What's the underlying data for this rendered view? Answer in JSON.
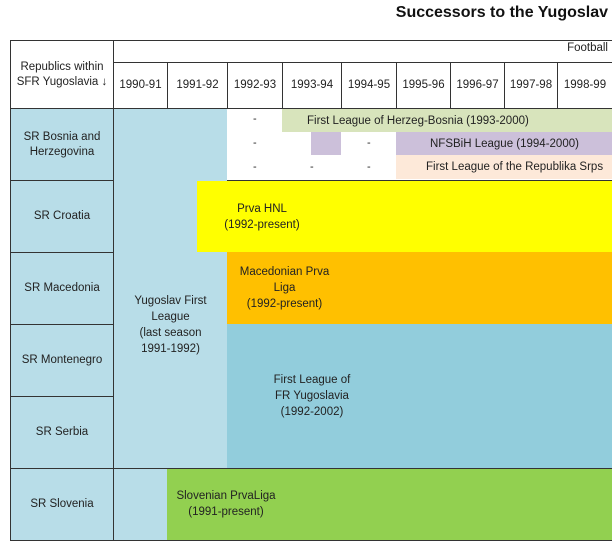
{
  "title": "Successors to the Yugoslav",
  "header": {
    "corner_label_line1": "Republics within",
    "corner_label_line2": "SFR Yugoslavia ↓",
    "sport": "Football",
    "years": [
      "1990-91",
      "1991-92",
      "1992-93",
      "1993-94",
      "1994-95",
      "1995-96",
      "1996-97",
      "1997-98",
      "1998-99"
    ]
  },
  "republics": {
    "bosnia_line1": "SR Bosnia and",
    "bosnia_line2": "Herzegovina",
    "croatia": "SR Croatia",
    "macedonia": "SR Macedonia",
    "montenegro": "SR Montenegro",
    "serbia": "SR Serbia",
    "slovenia": "SR Slovenia"
  },
  "leagues": {
    "yugoslav_first": [
      "Yugoslav First",
      "League",
      "(last season",
      "1991-1992)"
    ],
    "herzeg_bosnia": "First League of Herzeg-Bosnia (1993-2000)",
    "nfsbih": "NFSBiH League (1994-2000)",
    "republika_srpska": "First League of the Republika Srps",
    "prva_hnl": [
      "Prva HNL",
      "(1992-present)"
    ],
    "macedonian": [
      "Macedonian Prva",
      "Liga",
      "(1992-present)"
    ],
    "fr_yugoslavia": [
      "First League of",
      "FR Yugoslavia",
      "(1992-2002)"
    ],
    "slovenian": [
      "Slovenian PrvaLiga",
      "(1991-present)"
    ]
  },
  "dash": "-",
  "colors": {
    "republic_bg": "#b8dde8",
    "yugoslav": "#b8dde8",
    "herzeg_bosnia": "#d8e4bc",
    "nfsbih": "#ccc0da",
    "republika_srpska": "#fde9d9",
    "prva_hnl": "#ffff00",
    "macedonian": "#ffc000",
    "fr_yugoslavia": "#92cddc",
    "slovenian": "#92d050"
  }
}
